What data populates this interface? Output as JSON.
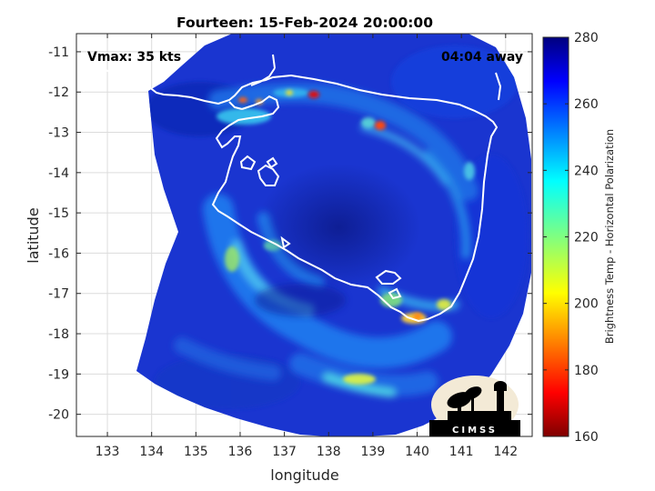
{
  "title": "Fourteen: 15-Feb-2024 20:00:00",
  "vmax_label": "Vmax: 35 kts",
  "away_label": "04:04 away",
  "xlabel": "longitude",
  "ylabel": "latitude",
  "colorbar_label": "Brightness Temp - Horizontal Polarization",
  "logo_text": "CIMSS",
  "chart_data": {
    "type": "heatmap",
    "title": "Fourteen: 15-Feb-2024 20:00:00",
    "xlabel": "longitude",
    "ylabel": "latitude",
    "xlim": [
      132.3,
      142.6
    ],
    "ylim": [
      -20.55,
      -10.55
    ],
    "x_ticks": [
      133,
      134,
      135,
      136,
      137,
      138,
      139,
      140,
      141,
      142
    ],
    "y_ticks": [
      -11,
      -12,
      -13,
      -14,
      -15,
      -16,
      -17,
      -18,
      -19,
      -20
    ],
    "grid": true,
    "colorbar": {
      "min": 160,
      "max": 280,
      "ticks": [
        280,
        260,
        240,
        220,
        200,
        180,
        160
      ],
      "colormap": "jet",
      "label": "Brightness Temp - Horizontal Polarization"
    },
    "swath_center": [
      139.1,
      -15.4
    ],
    "storm_center": [
      138.6,
      -15.2
    ],
    "cold_spots": [
      {
        "lon": 137.6,
        "lat": -12.05,
        "value": 175
      },
      {
        "lon": 139.3,
        "lat": -12.85,
        "value": 185
      },
      {
        "lon": 140.0,
        "lat": -17.55,
        "value": 195
      },
      {
        "lon": 136.2,
        "lat": -12.2,
        "value": 205
      }
    ]
  },
  "colors": {
    "background": "#ffffff",
    "grid": "#dcdcdc",
    "coastline": "#ffffff"
  }
}
